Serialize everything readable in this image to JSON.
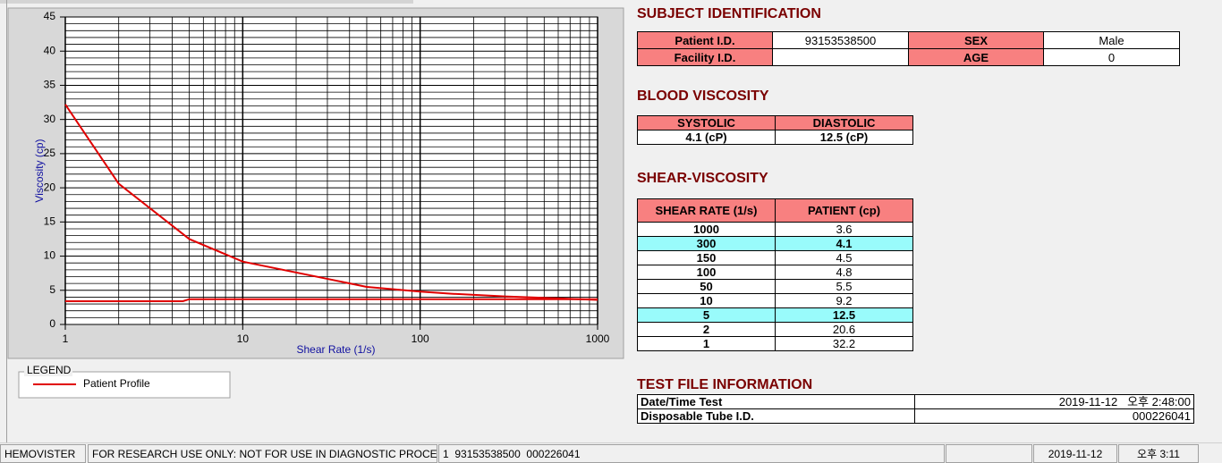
{
  "chart_data": {
    "type": "line",
    "xscale": "log",
    "y_label": "Viscosity (cp)",
    "x_label": "Shear Rate (1/s)",
    "xlim": [
      1,
      1000
    ],
    "xticks": [
      1,
      10,
      100,
      1000
    ],
    "ylim": [
      0,
      45
    ],
    "yticks": [
      0,
      5,
      10,
      15,
      20,
      25,
      30,
      35,
      40,
      45
    ],
    "grid": true,
    "minor_grid": true,
    "legend_title": "LEGEND",
    "series": [
      {
        "name": "Patient Profile",
        "color": "#e00000",
        "x": [
          1,
          2,
          5,
          10,
          50,
          100,
          150,
          300,
          1000
        ],
        "values": [
          32.2,
          20.6,
          12.5,
          9.2,
          5.5,
          4.8,
          4.5,
          4.1,
          3.6
        ]
      },
      {
        "color": "#e00000",
        "x": [
          1,
          4.6,
          5,
          1000
        ],
        "values": [
          3.4,
          3.4,
          3.7,
          3.7
        ]
      }
    ]
  },
  "subject_identification": {
    "title": "SUBJECT IDENTIFICATION",
    "fields": [
      {
        "label": "Patient I.D.",
        "value": "93153538500"
      },
      {
        "label": "SEX",
        "value": "Male"
      },
      {
        "label": "Facility I.D."
      },
      {
        "label": "AGE",
        "value": "0"
      }
    ]
  },
  "blood_viscosity": {
    "title": "BLOOD VISCOSITY",
    "headers": [
      "SYSTOLIC",
      "DIASTOLIC"
    ],
    "values": [
      "4.1 (cP)",
      "12.5 (cP)"
    ]
  },
  "shear_viscosity": {
    "title": "SHEAR-VISCOSITY",
    "headers": [
      "SHEAR RATE (1/s)",
      "PATIENT (cp)"
    ],
    "rows": [
      [
        1000,
        3.6
      ],
      [
        300,
        4.1
      ],
      [
        150,
        4.5
      ],
      [
        100,
        4.8
      ],
      [
        50,
        5.5
      ],
      [
        10,
        9.2
      ],
      [
        5,
        12.5
      ],
      [
        2,
        20.6
      ],
      [
        1,
        32.2
      ]
    ],
    "highlight_rows": [
      1,
      6
    ],
    "highlight_color": "#99fbfb"
  },
  "test_file_information": {
    "title": "TEST FILE INFORMATION",
    "rows": [
      [
        "Date/Time Test",
        "2019-11-12   오후 2:48:00"
      ],
      [
        "Disposable Tube I.D.",
        "000226041"
      ]
    ]
  },
  "status_bar": {
    "segments": [
      "HEMOVISTER",
      "FOR RESEARCH USE ONLY: NOT FOR USE IN DIAGNOSTIC PROCEDURES",
      "1  93153538500  000226041",
      "2019-11-12",
      "오후 3:11"
    ]
  }
}
